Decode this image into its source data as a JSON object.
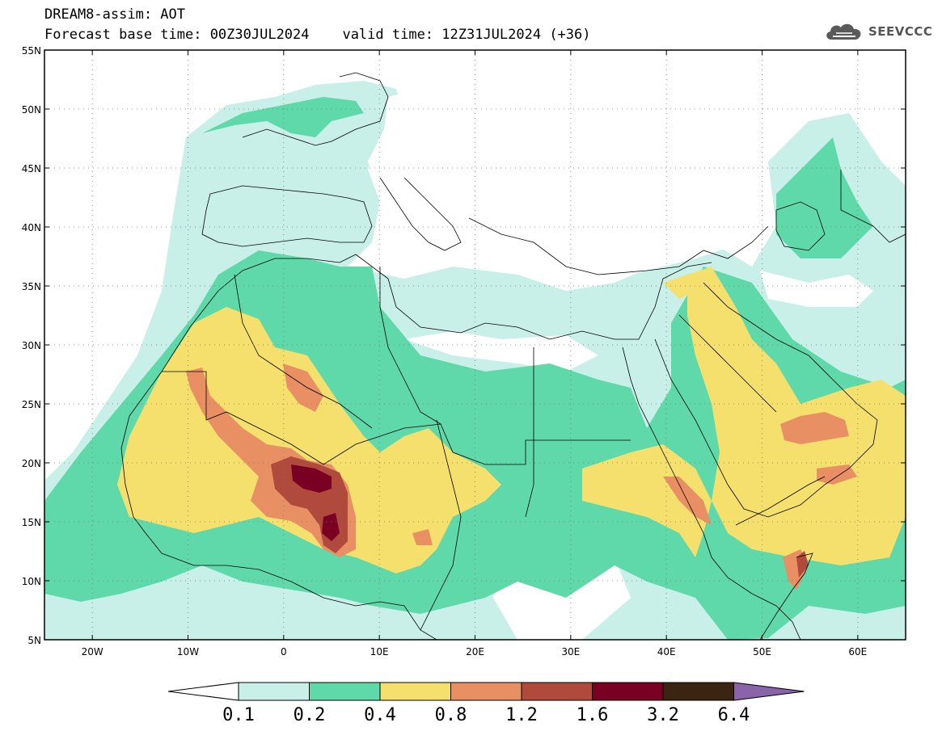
{
  "header": {
    "title_line1": "DREAM8-assim: AOT",
    "title_line2": "Forecast base time: 00Z30JUL2024    valid time: 12Z31JUL2024 (+36)"
  },
  "logo": {
    "text": "SEEVCCC",
    "icon": "cloud-icon"
  },
  "map": {
    "lon_range": [
      -25,
      65
    ],
    "lat_range": [
      5,
      55
    ],
    "lon_ticks": [
      {
        "value": -20,
        "label": "20W"
      },
      {
        "value": -10,
        "label": "10W"
      },
      {
        "value": 0,
        "label": "0"
      },
      {
        "value": 10,
        "label": "10E"
      },
      {
        "value": 20,
        "label": "20E"
      },
      {
        "value": 30,
        "label": "30E"
      },
      {
        "value": 40,
        "label": "40E"
      },
      {
        "value": 50,
        "label": "50E"
      },
      {
        "value": 60,
        "label": "60E"
      }
    ],
    "lat_ticks": [
      {
        "value": 55,
        "label": "55N"
      },
      {
        "value": 50,
        "label": "50N"
      },
      {
        "value": 45,
        "label": "45N"
      },
      {
        "value": 40,
        "label": "40N"
      },
      {
        "value": 35,
        "label": "35N"
      },
      {
        "value": 30,
        "label": "30N"
      },
      {
        "value": 25,
        "label": "25N"
      },
      {
        "value": 20,
        "label": "20N"
      },
      {
        "value": 15,
        "label": "15N"
      },
      {
        "value": 10,
        "label": "10N"
      },
      {
        "value": 5,
        "label": "5N"
      }
    ],
    "gridlines": "dotted"
  },
  "colorbar": {
    "labels": [
      "0.1",
      "0.2",
      "0.4",
      "0.8",
      "1.2",
      "1.6",
      "3.2",
      "6.4"
    ],
    "colors": [
      "#ffffff",
      "#c8f0e8",
      "#5fd9a9",
      "#f5e06e",
      "#e88f64",
      "#b04a3c",
      "#7a0023",
      "#3b2412",
      "#8a64a8"
    ]
  }
}
